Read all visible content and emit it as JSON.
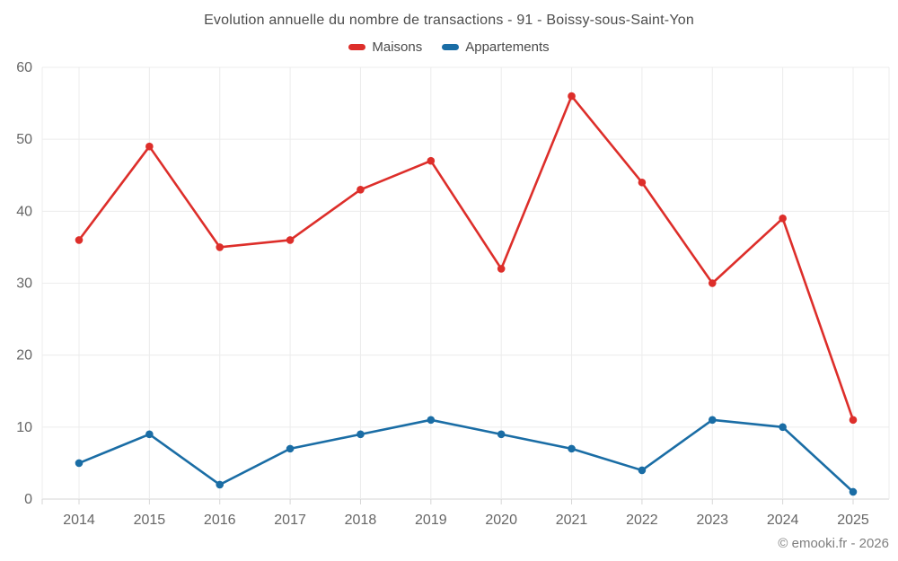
{
  "header": {
    "title": "Evolution annuelle du nombre de transactions - 91 - Boissy-sous-Saint-Yon"
  },
  "legend": {
    "items": [
      {
        "label": "Maisons",
        "color": "#dd2e2a"
      },
      {
        "label": "Appartements",
        "color": "#1a6da5"
      }
    ]
  },
  "footer": {
    "credit": "© emooki.fr - 2026"
  },
  "chart_data": {
    "type": "line",
    "title": "Evolution annuelle du nombre de transactions - 91 - Boissy-sous-Saint-Yon",
    "categories": [
      "2014",
      "2015",
      "2016",
      "2017",
      "2018",
      "2019",
      "2020",
      "2021",
      "2022",
      "2023",
      "2024",
      "2025"
    ],
    "series": [
      {
        "name": "Maisons",
        "color": "#dd2e2a",
        "values": [
          36,
          49,
          35,
          36,
          43,
          47,
          32,
          56,
          44,
          30,
          39,
          11
        ]
      },
      {
        "name": "Appartements",
        "color": "#1a6da5",
        "values": [
          5,
          9,
          2,
          7,
          9,
          11,
          9,
          7,
          4,
          11,
          10,
          1
        ]
      }
    ],
    "xlabel": "",
    "ylabel": "",
    "ylim": [
      0,
      60
    ],
    "ytick_step": 10,
    "yticks": [
      0,
      10,
      20,
      30,
      40,
      50,
      60
    ],
    "grid": true,
    "legend_position": "top",
    "marker": "circle",
    "colors": {
      "grid_line": "#ececec",
      "axis_line": "#d6d6d6",
      "tick_label": "#666666"
    }
  }
}
